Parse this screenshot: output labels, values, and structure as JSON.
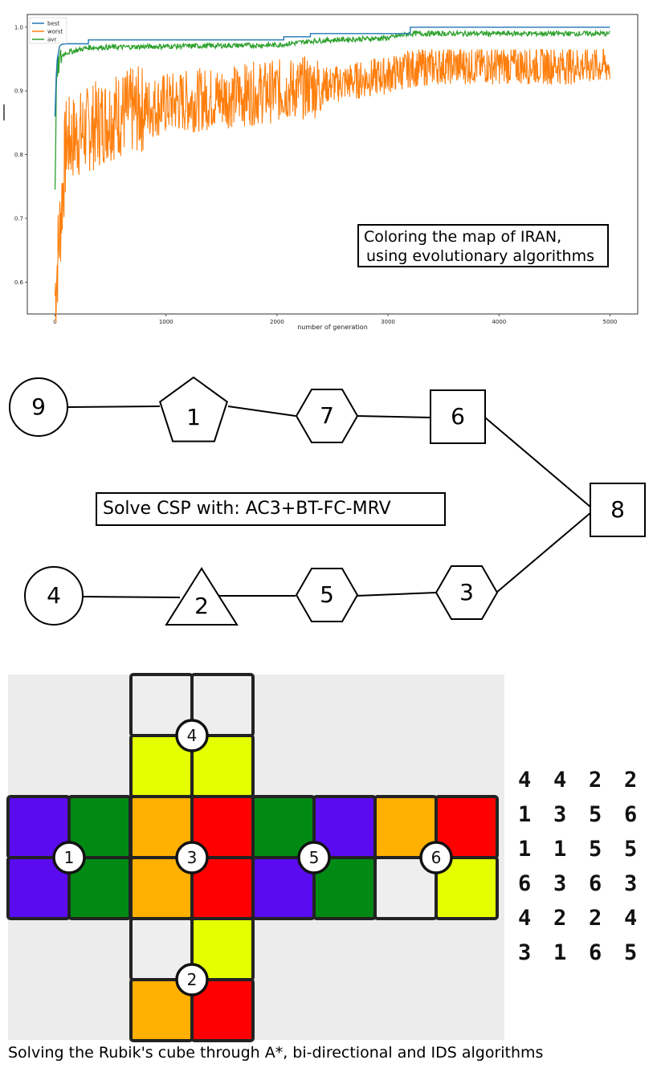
{
  "chart_data": {
    "type": "line",
    "title": "",
    "xlabel": "number of generation",
    "ylabel": "",
    "xlim": [
      -250,
      5250
    ],
    "ylim": [
      0.55,
      1.02
    ],
    "x_ticks": [
      0,
      1000,
      2000,
      3000,
      4000,
      5000
    ],
    "y_ticks": [
      0.6,
      0.7,
      0.8,
      0.9,
      1.0
    ],
    "legend_position": "top-left",
    "series": [
      {
        "name": "best",
        "color": "#1f77b4",
        "x": [
          0,
          10,
          20,
          40,
          60,
          100,
          300,
          301,
          2060,
          2061,
          2300,
          2301,
          3200,
          3201,
          5000
        ],
        "y": [
          0.86,
          0.92,
          0.95,
          0.97,
          0.973,
          0.974,
          0.974,
          0.98,
          0.98,
          0.985,
          0.985,
          0.99,
          0.99,
          1.0,
          1.0
        ]
      },
      {
        "name": "worst",
        "color": "#ff7f0e",
        "x": [
          0,
          100,
          500,
          1000,
          1500,
          2000,
          2500,
          3000,
          3200,
          3500,
          4000,
          4500,
          5000
        ],
        "y": [
          0.58,
          0.82,
          0.86,
          0.88,
          0.89,
          0.9,
          0.91,
          0.925,
          0.935,
          0.94,
          0.94,
          0.94,
          0.94
        ]
      },
      {
        "name": "avr",
        "color": "#2ca02c",
        "x": [
          0,
          10,
          30,
          60,
          100,
          300,
          1000,
          2000,
          2300,
          2500,
          3000,
          3200,
          4000,
          5000
        ],
        "y": [
          0.73,
          0.9,
          0.94,
          0.955,
          0.96,
          0.968,
          0.97,
          0.972,
          0.978,
          0.98,
          0.983,
          0.99,
          0.99,
          0.99
        ]
      }
    ]
  },
  "chart_caption": {
    "line1": "Coloring the map of IRAN,",
    "line2": "using evolutionary algorithms"
  },
  "csp": {
    "label": "Solve CSP with: AC3+BT-FC-MRV",
    "nodes": [
      {
        "id": "9",
        "shape": "circle"
      },
      {
        "id": "1",
        "shape": "pentagon"
      },
      {
        "id": "7",
        "shape": "hexagon"
      },
      {
        "id": "6",
        "shape": "square"
      },
      {
        "id": "8",
        "shape": "square"
      },
      {
        "id": "4",
        "shape": "circle"
      },
      {
        "id": "2",
        "shape": "triangle"
      },
      {
        "id": "5",
        "shape": "hexagon"
      },
      {
        "id": "3",
        "shape": "hexagon"
      }
    ],
    "edges": [
      [
        "9",
        "1"
      ],
      [
        "1",
        "7"
      ],
      [
        "7",
        "6"
      ],
      [
        "6",
        "8"
      ],
      [
        "4",
        "2"
      ],
      [
        "2",
        "5"
      ],
      [
        "5",
        "3"
      ],
      [
        "3",
        "8"
      ]
    ]
  },
  "rubik": {
    "caption": "Solving the Rubik's cube through A*, bi-directional and IDS algorithms",
    "colors": {
      "W": "#eeeeee",
      "Y": "#e5ff00",
      "B": "#5a0bf0",
      "G": "#008a14",
      "O": "#ffb000",
      "R": "#ff0000"
    },
    "faces": [
      {
        "label": "4",
        "cells": [
          "W",
          "W",
          "Y",
          "Y"
        ]
      },
      {
        "label": "1",
        "cells": [
          "B",
          "G",
          "B",
          "G"
        ]
      },
      {
        "label": "3",
        "cells": [
          "O",
          "R",
          "O",
          "R"
        ]
      },
      {
        "label": "5",
        "cells": [
          "G",
          "B",
          "B",
          "G"
        ]
      },
      {
        "label": "6",
        "cells": [
          "O",
          "R",
          "W",
          "Y"
        ]
      },
      {
        "label": "2",
        "cells": [
          "W",
          "Y",
          "O",
          "R"
        ]
      }
    ],
    "number_rows": [
      [
        "4",
        "4",
        "2",
        "2"
      ],
      [
        "1",
        "3",
        "5",
        "6"
      ],
      [
        "1",
        "1",
        "5",
        "5"
      ],
      [
        "6",
        "3",
        "6",
        "3"
      ],
      [
        "4",
        "2",
        "2",
        "4"
      ],
      [
        "3",
        "1",
        "6",
        "5"
      ]
    ]
  }
}
